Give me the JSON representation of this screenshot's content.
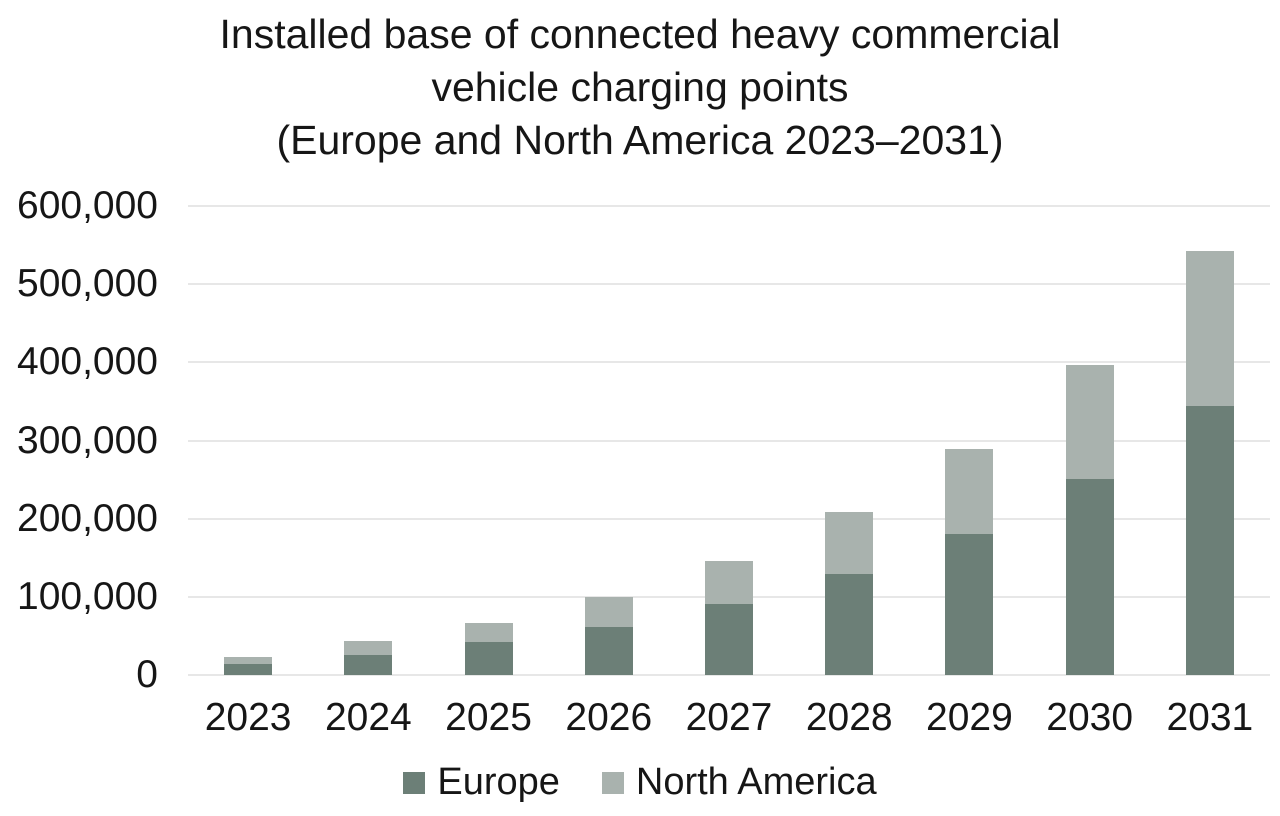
{
  "chart_data": {
    "type": "bar",
    "stacked": true,
    "title": "Installed base of connected heavy commercial\nvehicle charging points\n(Europe and North America 2023–2031)",
    "categories": [
      "2023",
      "2024",
      "2025",
      "2026",
      "2027",
      "2028",
      "2029",
      "2030",
      "2031"
    ],
    "series": [
      {
        "name": "Europe",
        "color": "#6C7F77",
        "values": [
          14000,
          25000,
          42000,
          61000,
          91000,
          129000,
          181000,
          251000,
          344000
        ]
      },
      {
        "name": "North America",
        "color": "#A9B2AE",
        "values": [
          9000,
          18000,
          25000,
          39000,
          55000,
          79000,
          108000,
          146000,
          198000
        ]
      }
    ],
    "stack_totals": [
      23000,
      43000,
      67000,
      100000,
      146000,
      208000,
      289000,
      397000,
      542000
    ],
    "xlabel": "",
    "ylabel": "",
    "ylim": [
      0,
      600000
    ],
    "y_ticks": [
      {
        "value": 0,
        "label": "0"
      },
      {
        "value": 100000,
        "label": "100,000"
      },
      {
        "value": 200000,
        "label": "200,000"
      },
      {
        "value": 300000,
        "label": "300,000"
      },
      {
        "value": 400000,
        "label": "400,000"
      },
      {
        "value": 500000,
        "label": "500,000"
      },
      {
        "value": 600000,
        "label": "600,000"
      }
    ],
    "grid": "horizontal",
    "grid_color": "#E7E7E7",
    "background_color": "#FFFFFF",
    "text_color": "#161616",
    "legend_position": "bottom"
  }
}
